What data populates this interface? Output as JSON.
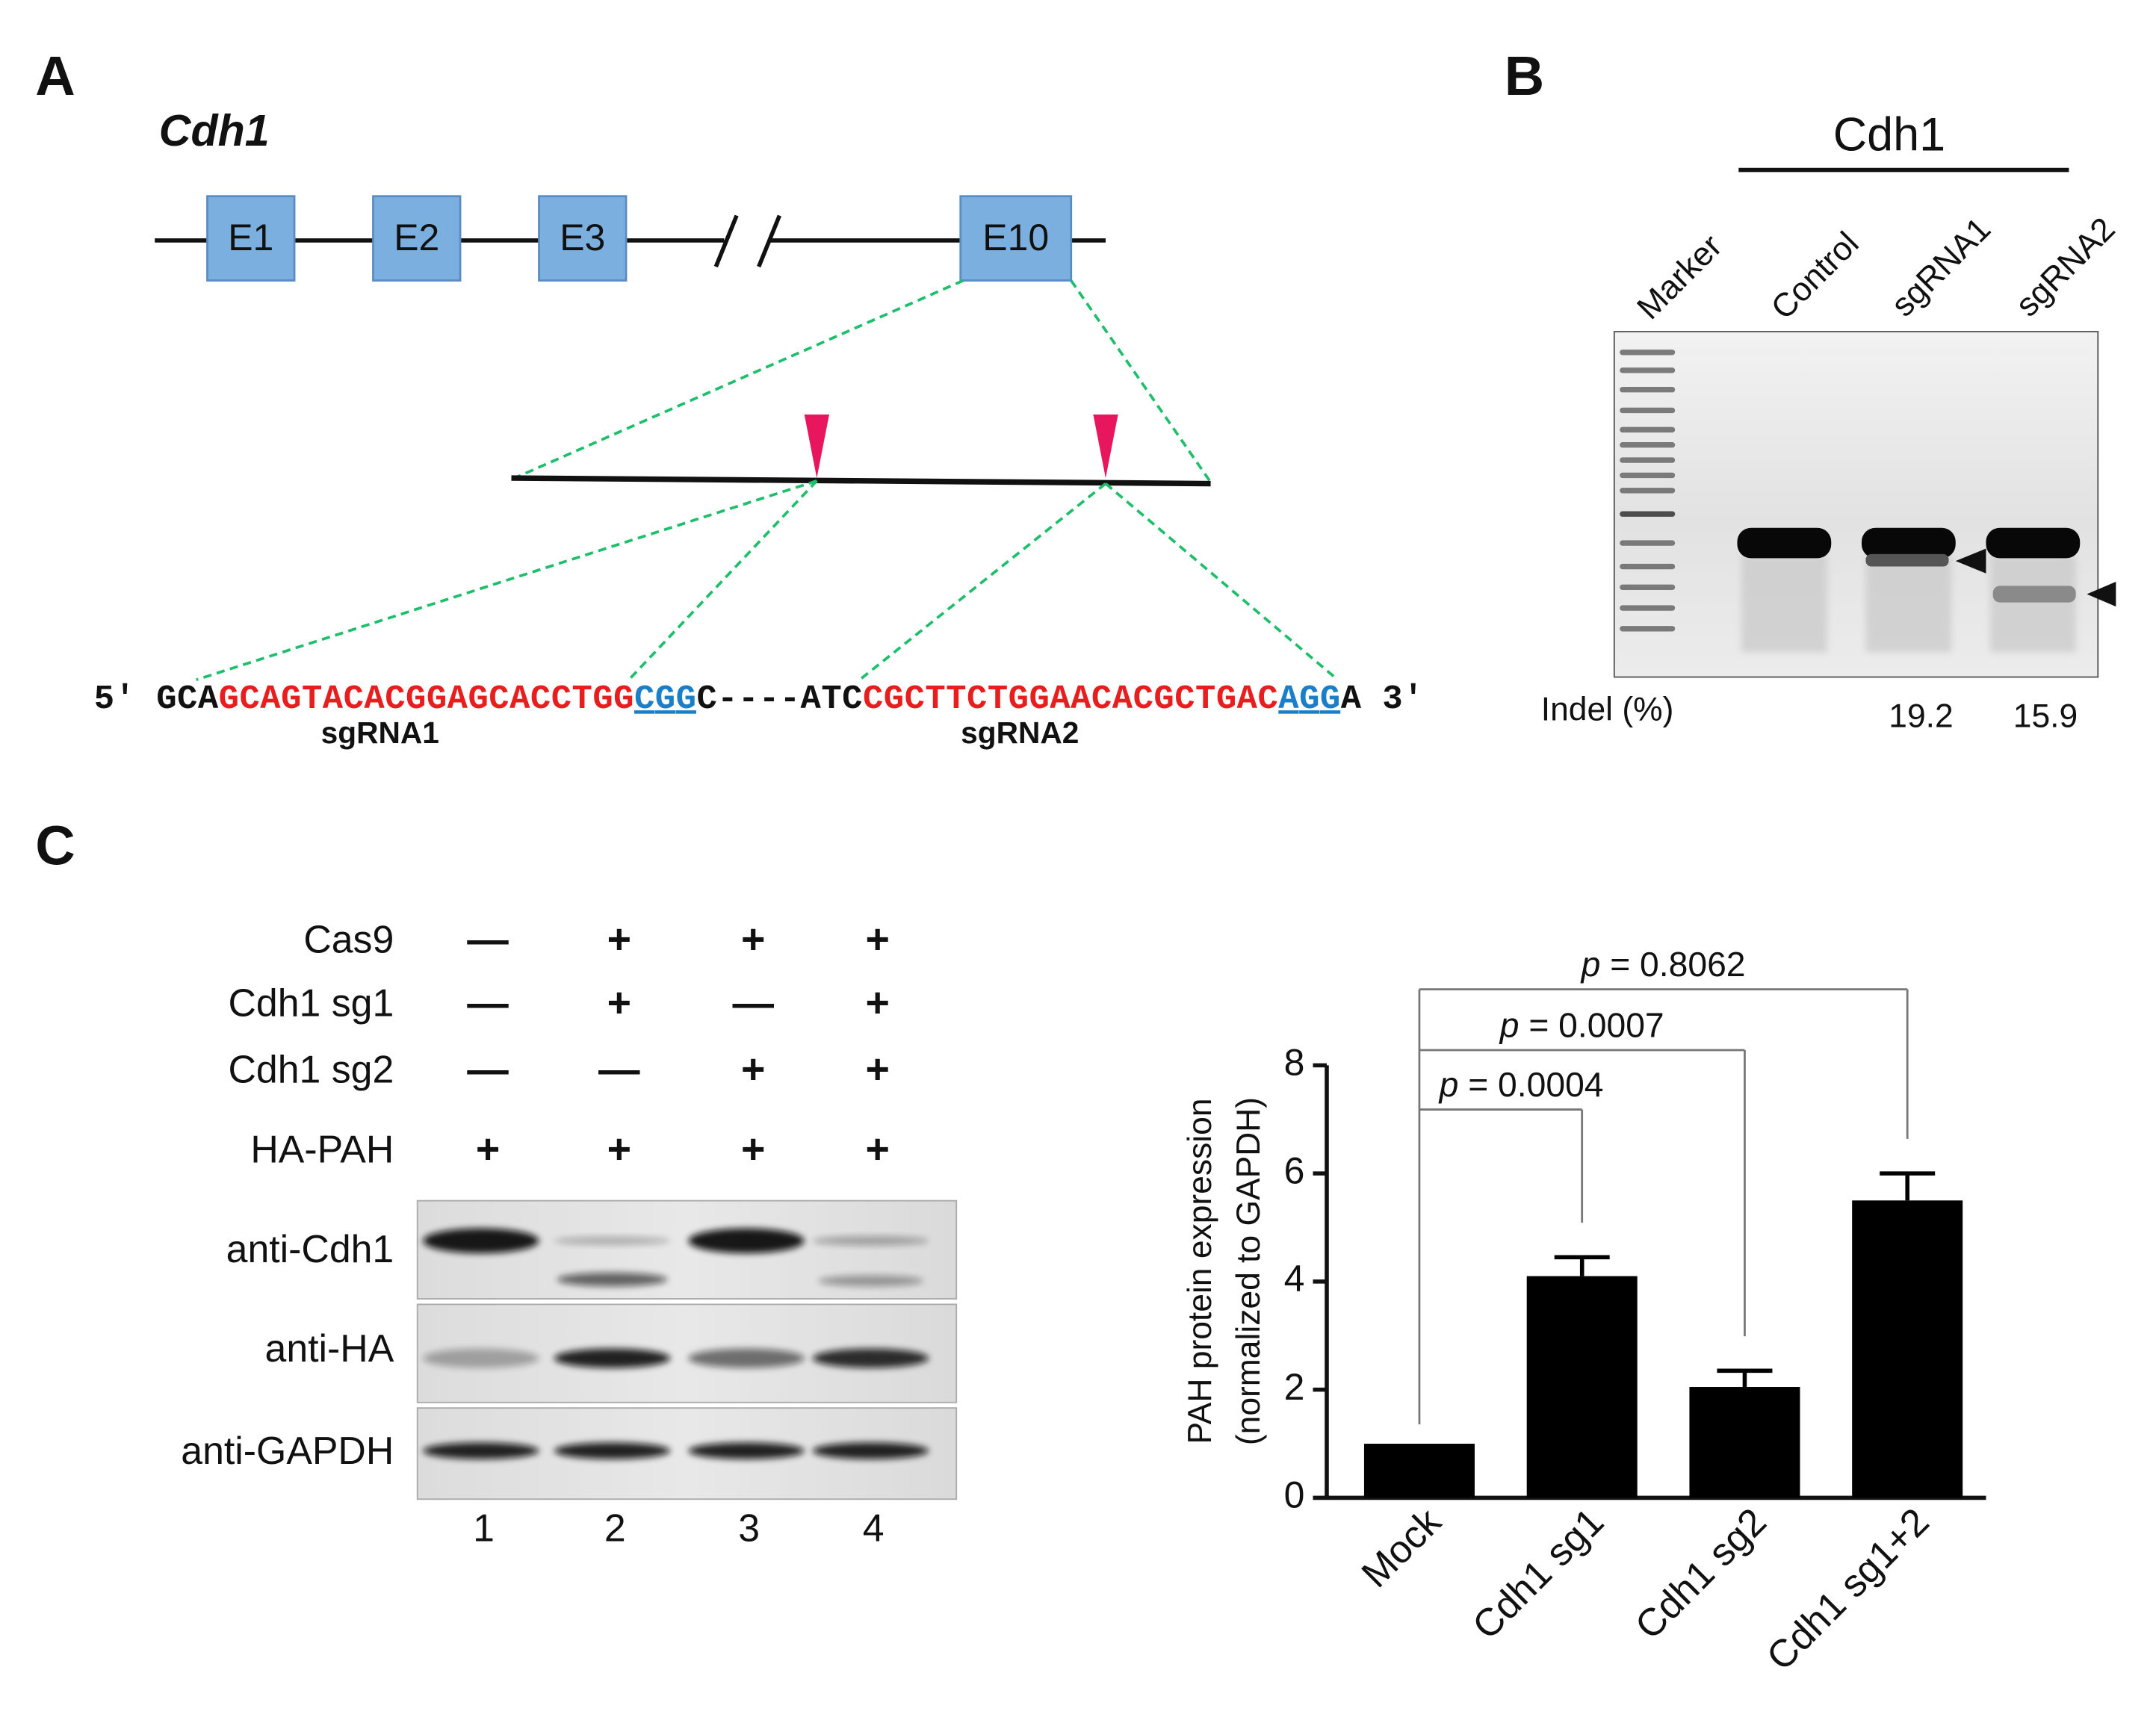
{
  "panel_a": {
    "label": "A",
    "gene": "Cdh1",
    "exons": [
      "E1",
      "E2",
      "E3",
      "E10"
    ],
    "sequence": {
      "prefix": "5′ GCA",
      "sgrna1": "GCAGTACACGGAGCACCTGG",
      "pam1": "CGG",
      "middle": "C----ATC",
      "sgrna2": "CGCTTCTGGAACACGCTGAC",
      "pam2": "AGG",
      "suffix": "A  3′"
    },
    "guide_labels": [
      "sgRNA1",
      "sgRNA2"
    ]
  },
  "panel_b": {
    "label": "B",
    "group": "Cdh1",
    "lanes": [
      "Marker",
      "Control",
      "sgRNA1",
      "sgRNA2"
    ],
    "indel_label": "Indel (%)",
    "indel_values": [
      19.2,
      15.9
    ]
  },
  "panel_c": {
    "label": "C",
    "conditions": [
      {
        "name": "Cas9",
        "signs": [
          "—",
          "+",
          "+",
          "+"
        ]
      },
      {
        "name": "Cdh1 sg1",
        "signs": [
          "—",
          "+",
          "—",
          "+"
        ]
      },
      {
        "name": "Cdh1 sg2",
        "signs": [
          "—",
          "—",
          "+",
          "+"
        ]
      },
      {
        "name": "HA-PAH",
        "signs": [
          "+",
          "+",
          "+",
          "+"
        ]
      }
    ],
    "blots": [
      "anti-Cdh1",
      "anti-HA",
      "anti-GAPDH"
    ],
    "lanes": [
      "1",
      "2",
      "3",
      "4"
    ]
  },
  "chart_data": {
    "type": "bar",
    "ylabel": [
      "PAH protein expression",
      "(normalized to GAPDH)"
    ],
    "categories": [
      "Mock",
      "Cdh1 sg1",
      "Cdh1 sg2",
      "Cdh1 sg1+2"
    ],
    "values": [
      1,
      4.1,
      2.05,
      5.5
    ],
    "errors": [
      0,
      0.35,
      0.3,
      0.5
    ],
    "color": "#000000",
    "ylim": [
      0,
      8
    ],
    "yticks": [
      0,
      2,
      4,
      6,
      8
    ],
    "comparisons": [
      {
        "symbol": "p",
        "text": " = 0.0004"
      },
      {
        "symbol": "p",
        "text": " = 0.0007"
      },
      {
        "symbol": "p",
        "text": " = 0.8062"
      }
    ]
  }
}
